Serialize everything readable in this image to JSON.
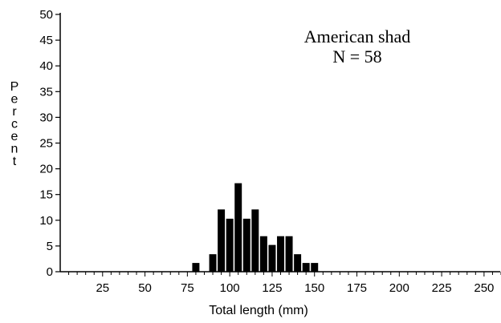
{
  "chart_data": {
    "type": "bar",
    "xlabel": "Total length (mm)",
    "ylabel": "Percent",
    "annotation": {
      "species": "American shad",
      "n_label": "N = 58"
    },
    "xlim": [
      0,
      260
    ],
    "ylim": [
      0,
      50
    ],
    "x_ticks": [
      25,
      50,
      75,
      100,
      125,
      150,
      175,
      200,
      225,
      250
    ],
    "y_ticks": [
      0,
      5,
      10,
      15,
      20,
      25,
      30,
      35,
      40,
      45,
      50
    ],
    "bin_width": 5,
    "x": [
      80,
      90,
      95,
      100,
      105,
      110,
      115,
      120,
      125,
      130,
      135,
      140,
      145,
      150
    ],
    "values": [
      1.7,
      3.4,
      12.1,
      10.3,
      17.2,
      10.3,
      12.1,
      6.9,
      5.2,
      6.9,
      6.9,
      3.4,
      1.7,
      1.7
    ],
    "grid": false
  }
}
